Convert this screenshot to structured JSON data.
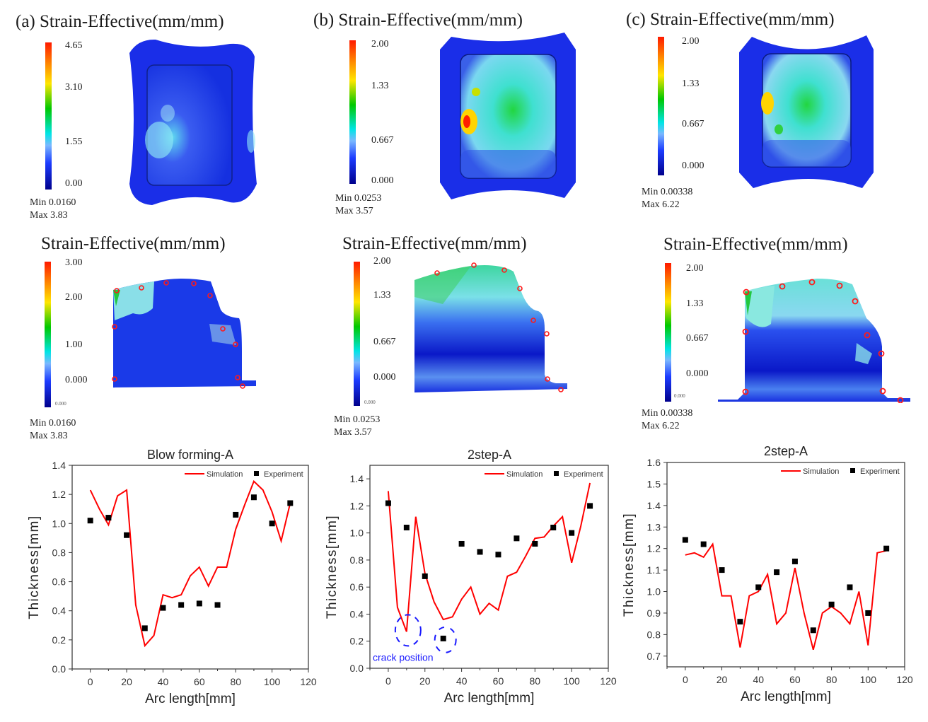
{
  "panels": [
    {
      "id": "a",
      "top": {
        "title": "(a) Strain-Effective(mm/mm)",
        "scale_labels": [
          "4.65",
          "3.10",
          "1.55",
          "0.00"
        ],
        "min_label": "Min 0.0160",
        "max_label": "Max 3.83"
      },
      "section": {
        "title": "Strain-Effective(mm/mm)",
        "scale_labels": [
          "3.00",
          "2.00",
          "1.00",
          "0.000"
        ],
        "scale_bottom": "0.000",
        "min_label": "Min 0.0160",
        "max_label": "Max 3.83"
      }
    },
    {
      "id": "b",
      "top": {
        "title": "(b) Strain-Effective(mm/mm)",
        "scale_labels": [
          "2.00",
          "1.33",
          "0.667",
          "0.000"
        ],
        "min_label": "Min 0.0253",
        "max_label": "Max 3.57"
      },
      "section": {
        "title": "Strain-Effective(mm/mm)",
        "scale_labels": [
          "2.00",
          "1.33",
          "0.667",
          "0.000"
        ],
        "scale_bottom": "0.000",
        "min_label": "Min 0.0253",
        "max_label": "Max 3.57"
      }
    },
    {
      "id": "c",
      "top": {
        "title": "(c) Strain-Effective(mm/mm)",
        "scale_labels": [
          "2.00",
          "1.33",
          "0.667",
          "0.000"
        ],
        "min_label": "Min 0.00338",
        "max_label": "Max 6.22"
      },
      "section": {
        "title": "Strain-Effective(mm/mm)",
        "scale_labels": [
          "2.00",
          "1.33",
          "0.667",
          "0.000"
        ],
        "scale_bottom": "0.000",
        "min_label": "Min 0.00338",
        "max_label": "Max 6.22"
      }
    }
  ],
  "chart_data": [
    {
      "type": "line",
      "title": "Blow forming-A",
      "xlabel": "Arc length[mm]",
      "ylabel": "Thickness[mm]",
      "xlim": [
        -10,
        120
      ],
      "ylim": [
        0.0,
        1.4
      ],
      "xticks": [
        0,
        20,
        40,
        60,
        80,
        100,
        120
      ],
      "yticks": [
        0.0,
        0.2,
        0.4,
        0.6,
        0.8,
        1.0,
        1.2,
        1.4
      ],
      "ytick_labels": [
        "0.0",
        "0.2",
        "0.4",
        "0.6",
        "0.8",
        "1.0",
        "1.2",
        "1.4"
      ],
      "grid": false,
      "legend": "top-right",
      "series": [
        {
          "name": "Simulation",
          "kind": "line",
          "color": "#ff0000",
          "x": [
            0,
            5,
            10,
            15,
            20,
            25,
            30,
            35,
            40,
            45,
            50,
            55,
            60,
            65,
            70,
            75,
            80,
            85,
            90,
            95,
            100,
            105,
            110
          ],
          "y": [
            1.23,
            1.1,
            0.99,
            1.19,
            1.23,
            0.44,
            0.16,
            0.23,
            0.51,
            0.49,
            0.51,
            0.64,
            0.7,
            0.57,
            0.7,
            0.7,
            0.96,
            1.13,
            1.29,
            1.23,
            1.08,
            0.88,
            1.14
          ]
        },
        {
          "name": "Experiment",
          "kind": "scatter",
          "color": "#000000",
          "x": [
            0,
            10,
            20,
            30,
            40,
            50,
            60,
            70,
            80,
            90,
            100,
            110
          ],
          "y": [
            1.02,
            1.04,
            0.92,
            0.28,
            0.42,
            0.44,
            0.45,
            0.44,
            1.06,
            1.18,
            1.0,
            1.14
          ]
        }
      ],
      "annotations": []
    },
    {
      "type": "line",
      "title": "2step-A",
      "xlabel": "Arc length[mm]",
      "ylabel": "Thickness[mm]",
      "xlim": [
        -10,
        120
      ],
      "ylim": [
        0.0,
        1.5
      ],
      "xticks": [
        0,
        20,
        40,
        60,
        80,
        100,
        120
      ],
      "yticks": [
        0.0,
        0.2,
        0.4,
        0.6,
        0.8,
        1.0,
        1.2,
        1.4
      ],
      "ytick_labels": [
        "0.0",
        "0.2",
        "0.4",
        "0.6",
        "0.8",
        "1.0",
        "1.2",
        "1.4"
      ],
      "grid": false,
      "legend": "top-right",
      "series": [
        {
          "name": "Simulation",
          "kind": "line",
          "color": "#ff0000",
          "x": [
            0,
            5,
            10,
            15,
            20,
            25,
            30,
            35,
            40,
            45,
            50,
            55,
            60,
            65,
            70,
            75,
            80,
            85,
            90,
            95,
            100,
            105,
            110
          ],
          "y": [
            1.31,
            0.45,
            0.27,
            1.12,
            0.7,
            0.49,
            0.36,
            0.38,
            0.51,
            0.6,
            0.4,
            0.48,
            0.43,
            0.68,
            0.71,
            0.83,
            0.96,
            0.97,
            1.05,
            1.12,
            0.78,
            1.05,
            1.37
          ]
        },
        {
          "name": "Experiment",
          "kind": "scatter",
          "color": "#000000",
          "x": [
            0,
            10,
            20,
            30,
            40,
            50,
            60,
            70,
            80,
            90,
            100,
            110
          ],
          "y": [
            1.22,
            1.04,
            0.68,
            0.22,
            0.92,
            0.86,
            0.84,
            0.96,
            0.92,
            1.04,
            1.0,
            1.2
          ]
        }
      ],
      "annotations": [
        {
          "text": "crack position",
          "color": "#1a1aff",
          "near_x": [
            10,
            30
          ]
        }
      ]
    },
    {
      "type": "line",
      "title": "2step-A",
      "xlabel": "Arc length[mm]",
      "ylabel": "Thickness[mm]",
      "xlim": [
        -10,
        120
      ],
      "ylim": [
        0.65,
        1.6
      ],
      "xticks": [
        0,
        20,
        40,
        60,
        80,
        100,
        120
      ],
      "yticks": [
        0.7,
        0.8,
        0.9,
        1.0,
        1.1,
        1.2,
        1.3,
        1.4,
        1.5,
        1.6
      ],
      "ytick_labels": [
        "0.7",
        "0.8",
        "0.9",
        "1.0",
        "1.1",
        "1.2",
        "1.3",
        "1.4",
        "1.5",
        "1.6"
      ],
      "grid": false,
      "legend": "top-right",
      "series": [
        {
          "name": "Simulation",
          "kind": "line",
          "color": "#ff0000",
          "x": [
            0,
            5,
            10,
            15,
            20,
            25,
            30,
            35,
            40,
            45,
            50,
            55,
            60,
            65,
            70,
            75,
            80,
            85,
            90,
            95,
            100,
            105,
            110
          ],
          "y": [
            1.17,
            1.18,
            1.16,
            1.22,
            0.98,
            0.98,
            0.74,
            0.98,
            1.0,
            1.08,
            0.85,
            0.9,
            1.11,
            0.9,
            0.73,
            0.9,
            0.93,
            0.9,
            0.85,
            1.0,
            0.75,
            1.18,
            1.19
          ]
        },
        {
          "name": "Experiment",
          "kind": "scatter",
          "color": "#000000",
          "x": [
            0,
            10,
            20,
            30,
            40,
            50,
            60,
            70,
            80,
            90,
            100,
            110
          ],
          "y": [
            1.24,
            1.22,
            1.1,
            0.86,
            1.02,
            1.09,
            1.14,
            0.82,
            0.94,
            1.02,
            0.9,
            1.2
          ]
        }
      ],
      "annotations": []
    }
  ]
}
